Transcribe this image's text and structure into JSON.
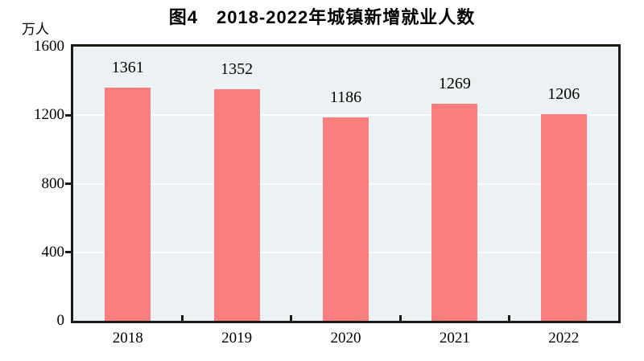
{
  "colors": {
    "bar": "#FB7E7E",
    "plot_bg": "#ECF2F4",
    "gridline": "#FAFDFD",
    "axis": "#1A1A1A",
    "text": "#000000"
  },
  "chart_data": {
    "type": "bar",
    "title": "图4　2018-2022年城镇新增就业人数",
    "categories": [
      "2018",
      "2019",
      "2020",
      "2021",
      "2022"
    ],
    "values": [
      1361,
      1352,
      1186,
      1269,
      1206
    ],
    "xlabel": "",
    "ylabel": "万人",
    "ylim": [
      0,
      1600
    ],
    "yticks": [
      0,
      400,
      800,
      1200,
      1600
    ],
    "grid": true,
    "legend": false,
    "value_labels_shown": true
  }
}
